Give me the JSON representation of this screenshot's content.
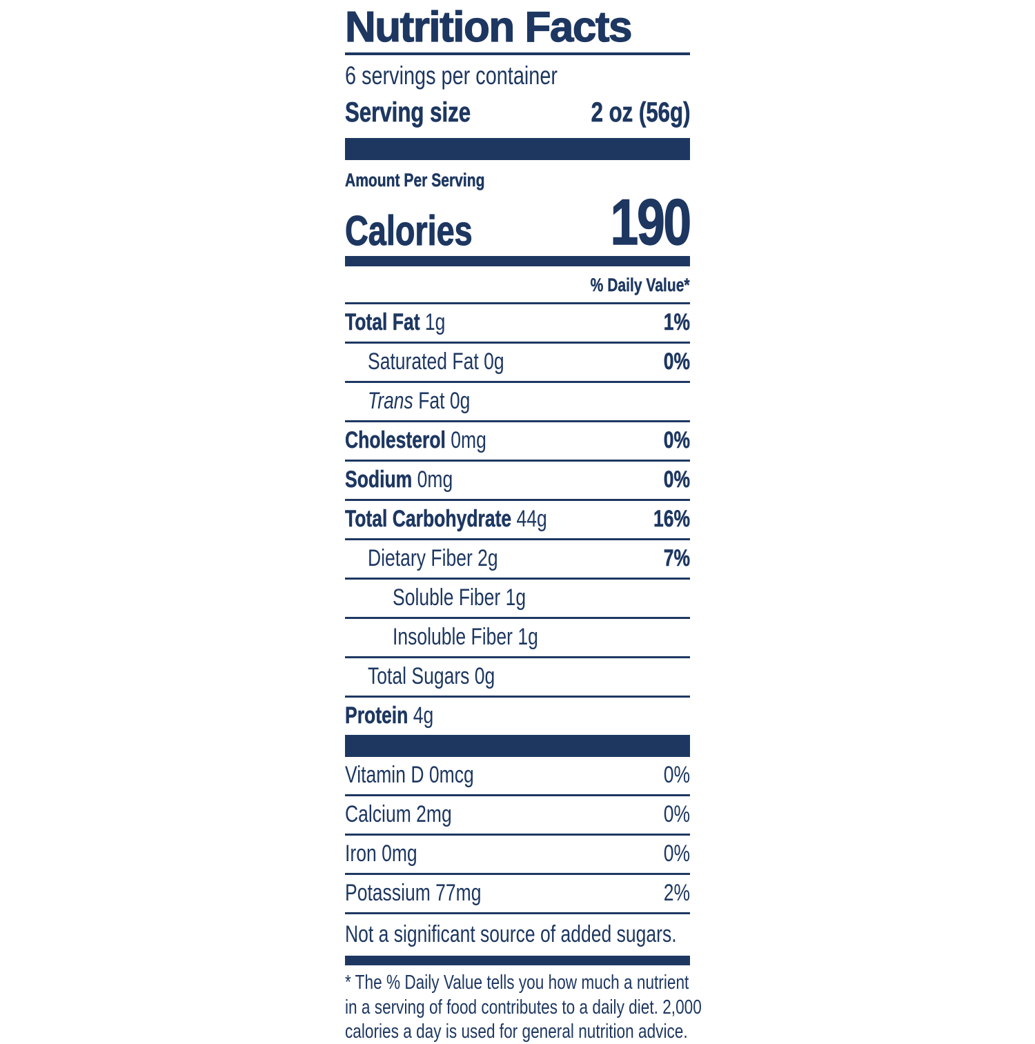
{
  "colors": {
    "navy": "#1d3761",
    "background": "#ffffff"
  },
  "label": {
    "title": "Nutrition Facts",
    "servings_per_container": "6 servings per container",
    "serving_size": {
      "label": "Serving size",
      "value": "2 oz (56g)"
    },
    "amount_per_serving": "Amount Per Serving",
    "calories": {
      "label": "Calories",
      "value": "190"
    },
    "daily_value_header": "% Daily Value*",
    "nutrients": [
      {
        "name_italic": "",
        "name": "Total Fat",
        "amount": "1g",
        "percent": "1%",
        "indent": 0,
        "bold": true
      },
      {
        "name_italic": "",
        "name": "Saturated Fat",
        "amount": "0g",
        "percent": "0%",
        "indent": 1,
        "bold": false
      },
      {
        "name_italic": "Trans",
        "name": "Fat",
        "amount": "0g",
        "percent": "",
        "indent": 1,
        "bold": false
      },
      {
        "name_italic": "",
        "name": "Cholesterol",
        "amount": "0mg",
        "percent": "0%",
        "indent": 0,
        "bold": true
      },
      {
        "name_italic": "",
        "name": "Sodium",
        "amount": "0mg",
        "percent": "0%",
        "indent": 0,
        "bold": true
      },
      {
        "name_italic": "",
        "name": "Total Carbohydrate",
        "amount": "44g",
        "percent": "16%",
        "indent": 0,
        "bold": true
      },
      {
        "name_italic": "",
        "name": "Dietary Fiber",
        "amount": "2g",
        "percent": "7%",
        "indent": 1,
        "bold": false
      },
      {
        "name_italic": "",
        "name": "Soluble Fiber",
        "amount": "1g",
        "percent": "",
        "indent": 2,
        "bold": false
      },
      {
        "name_italic": "",
        "name": "Insoluble Fiber",
        "amount": "1g",
        "percent": "",
        "indent": 2,
        "bold": false
      },
      {
        "name_italic": "",
        "name": "Total Sugars",
        "amount": "0g",
        "percent": "",
        "indent": 1,
        "bold": false
      },
      {
        "name_italic": "",
        "name": "Protein",
        "amount": "4g",
        "percent": "",
        "indent": 0,
        "bold": true
      }
    ],
    "micronutrients": [
      {
        "name": "Vitamin D",
        "amount": "0mcg",
        "percent": "0%"
      },
      {
        "name": "Calcium",
        "amount": "2mg",
        "percent": "0%"
      },
      {
        "name": "Iron",
        "amount": "0mg",
        "percent": "0%"
      },
      {
        "name": "Potassium",
        "amount": "77mg",
        "percent": "2%"
      }
    ],
    "not_significant_note": "Not a significant source of added sugars.",
    "footnote_lines": [
      "* The % Daily Value tells you how much a nutrient",
      "in a serving of food contributes to a daily diet. 2,000",
      "calories a day is used for general nutrition advice."
    ]
  }
}
